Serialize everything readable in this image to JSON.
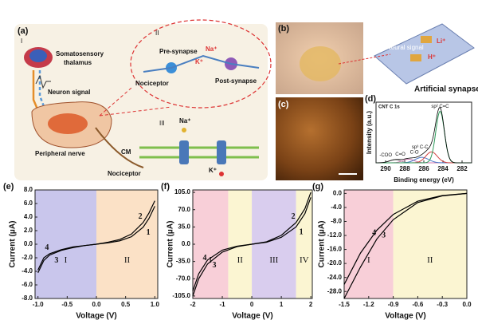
{
  "illustration": {
    "label_a": "(a)",
    "section_1": "I",
    "thalamus_1": "Somatosensory",
    "thalamus_2": "thalamus",
    "neuron_signal": "Neuron signal",
    "peripheral_nerve": "Peripheral nerve",
    "nociceptor": "Nociceptor",
    "section_2": "II",
    "pre_synapse": "Pre-synapse",
    "nociceptor_2": "Nociceptor",
    "na_1": "Na⁺",
    "k_1": "K⁺",
    "post_synapse": "Post-synapse",
    "section_3": "III",
    "cm": "CM",
    "na_2": "Na⁺",
    "k_2": "K⁺",
    "label_b": "(b)",
    "neural_signal": "Neural signal",
    "li": "Li⁺",
    "h": "H⁺",
    "artificial_synapse": "Artificial synapse",
    "label_c": "(c)"
  },
  "chart_data": [
    {
      "type": "spectrum",
      "title": "(d)",
      "source": "CNT C 1s",
      "x_label": "Binding energy (eV)",
      "y_label": "Intensity (a.u.)",
      "xlim": [
        291,
        281
      ],
      "xticks": [
        290,
        288,
        286,
        284,
        282
      ],
      "ylim": [
        0,
        100
      ],
      "peaks": [
        {
          "label": "-COO",
          "center": 289.0,
          "height": 5,
          "width": 0.6,
          "color": "#999999"
        },
        {
          "label": "C=O",
          "center": 287.6,
          "height": 6,
          "width": 0.6,
          "color": "#d07ab0"
        },
        {
          "label": "C-O",
          "center": 286.2,
          "height": 9,
          "width": 0.7,
          "color": "#4a78c8"
        },
        {
          "label": "sp³ C-C",
          "center": 285.2,
          "height": 18,
          "width": 0.6,
          "color": "#d04040"
        },
        {
          "label": "sp² C=C",
          "center": 284.3,
          "height": 85,
          "width": 0.45,
          "color": "#2e9a5a"
        }
      ]
    },
    {
      "type": "line",
      "title": "(e)",
      "x_label": "Voltage (V)",
      "y_label": "Current (μA)",
      "xlim": [
        -1.05,
        1.05
      ],
      "xticks": [
        {
          "value": -1.0,
          "label": "-1.0"
        },
        {
          "value": -0.5,
          "label": "-0.5"
        },
        {
          "value": 0,
          "label": "0.0"
        },
        {
          "value": 0.5,
          "label": "0.5"
        },
        {
          "value": 1.0,
          "label": "1.0"
        }
      ],
      "ylim": [
        -8,
        8
      ],
      "yticks": [
        {
          "value": -8,
          "label": "-8.0"
        },
        {
          "value": -6,
          "label": "-6.0"
        },
        {
          "value": -4,
          "label": "-4.0"
        },
        {
          "value": -2,
          "label": "-2.0"
        },
        {
          "value": 0,
          "label": "0.0"
        },
        {
          "value": 2,
          "label": "2.0"
        },
        {
          "value": 4,
          "label": "4.0"
        },
        {
          "value": 6,
          "label": "6.0"
        },
        {
          "value": 8,
          "label": "8.0"
        }
      ],
      "regions": [
        {
          "label": "I",
          "from": -1.05,
          "to": 0,
          "color": "#c9c6ec"
        },
        {
          "label": "II",
          "from": 0,
          "to": 1.05,
          "color": "#fbe1c6"
        }
      ],
      "series": [
        {
          "name": "1",
          "color": "#000000",
          "x": [
            0,
            0.2,
            0.4,
            0.6,
            0.8,
            0.9,
            1.0
          ],
          "values": [
            0,
            0.2,
            0.5,
            1.1,
            2.5,
            3.8,
            5.6
          ]
        },
        {
          "name": "2",
          "color": "#000000",
          "x": [
            0,
            0.2,
            0.4,
            0.6,
            0.8,
            0.9,
            1.0
          ],
          "values": [
            0,
            0.3,
            0.7,
            1.5,
            3.2,
            4.6,
            6.4
          ]
        },
        {
          "name": "3",
          "color": "#000000",
          "x": [
            0,
            -0.2,
            -0.4,
            -0.6,
            -0.8,
            -0.9,
            -1.0
          ],
          "values": [
            0,
            -0.2,
            -0.5,
            -0.9,
            -1.6,
            -2.4,
            -4.2
          ]
        },
        {
          "name": "4",
          "color": "#000000",
          "x": [
            0,
            -0.2,
            -0.4,
            -0.6,
            -0.8,
            -0.9,
            -1.0
          ],
          "values": [
            0,
            -0.2,
            -0.4,
            -0.8,
            -1.4,
            -2.0,
            -3.8
          ]
        }
      ]
    },
    {
      "type": "line",
      "title": "(f)",
      "x_label": "Voltage (V)",
      "y_label": "Current (μA)",
      "xlim": [
        -2,
        2.05
      ],
      "xticks": [
        -2,
        -1,
        0,
        1,
        2
      ],
      "ylim": [
        -110,
        110
      ],
      "yticks": [
        {
          "value": -105,
          "label": "-105.0"
        },
        {
          "value": -70,
          "label": "-70.0"
        },
        {
          "value": -35,
          "label": "-35.0"
        },
        {
          "value": 0,
          "label": "0.0"
        },
        {
          "value": 35,
          "label": "35.0"
        },
        {
          "value": 70,
          "label": "70.0"
        },
        {
          "value": 105,
          "label": "105.0"
        }
      ],
      "regions": [
        {
          "label": "I",
          "from": -2,
          "to": -0.8,
          "color": "#f8cfd8"
        },
        {
          "label": "II",
          "from": -0.8,
          "to": 0,
          "color": "#fbf5d2"
        },
        {
          "label": "III",
          "from": 0,
          "to": 1.5,
          "color": "#d9cdee"
        },
        {
          "label": "IV",
          "from": 1.5,
          "to": 2.05,
          "color": "#fbf5d2"
        }
      ],
      "series": [
        {
          "name": "1",
          "color": "#000000",
          "x": [
            0,
            0.5,
            1.0,
            1.5,
            1.8,
            2.0
          ],
          "values": [
            0,
            4,
            14,
            35,
            62,
            95
          ]
        },
        {
          "name": "2",
          "color": "#000000",
          "x": [
            0,
            0.5,
            1.0,
            1.5,
            1.8,
            2.0
          ],
          "values": [
            0,
            5,
            18,
            44,
            72,
            105
          ]
        },
        {
          "name": "3",
          "color": "#000000",
          "x": [
            0,
            -0.5,
            -1.0,
            -1.5,
            -1.8,
            -2.0
          ],
          "values": [
            0,
            -4,
            -12,
            -32,
            -60,
            -95
          ]
        },
        {
          "name": "4",
          "color": "#000000",
          "x": [
            0,
            -0.5,
            -1.0,
            -1.5,
            -1.8,
            -2.0
          ],
          "values": [
            0,
            -5,
            -16,
            -40,
            -70,
            -105
          ]
        }
      ]
    },
    {
      "type": "line",
      "title": "(g)",
      "x_label": "Voltage (V)",
      "y_label": "Current (μA)",
      "xlim": [
        -1.5,
        0
      ],
      "xticks": [
        -1.5,
        -1.2,
        -0.9,
        -0.6,
        -0.3,
        {
          "value": 0,
          "label": "0.0"
        }
      ],
      "ylim": [
        -30,
        1
      ],
      "yticks": [
        {
          "value": -28,
          "label": "-28.0"
        },
        {
          "value": -24,
          "label": "-24.0"
        },
        {
          "value": -20,
          "label": "-20.0"
        },
        {
          "value": -16,
          "label": "-16.0"
        },
        {
          "value": -12,
          "label": "-12.0"
        },
        {
          "value": -8,
          "label": "-8.0"
        },
        {
          "value": -4,
          "label": "-4.0"
        },
        {
          "value": 0,
          "label": "0.0"
        }
      ],
      "regions": [
        {
          "label": "I",
          "from": -1.5,
          "to": -0.9,
          "color": "#f8cfd8"
        },
        {
          "label": "II",
          "from": -0.9,
          "to": 0,
          "color": "#fbf5d2"
        }
      ],
      "series": [
        {
          "name": "3",
          "color": "#000000",
          "x": [
            0,
            -0.3,
            -0.6,
            -0.9,
            -1.1,
            -1.3,
            -1.5
          ],
          "values": [
            0,
            -0.6,
            -2.2,
            -6,
            -10.5,
            -17,
            -26
          ]
        },
        {
          "name": "4",
          "color": "#000000",
          "x": [
            0,
            -0.3,
            -0.6,
            -0.9,
            -1.1,
            -1.3,
            -1.5
          ],
          "values": [
            0,
            -0.7,
            -2.6,
            -7.5,
            -13,
            -21,
            -30
          ]
        }
      ]
    }
  ]
}
